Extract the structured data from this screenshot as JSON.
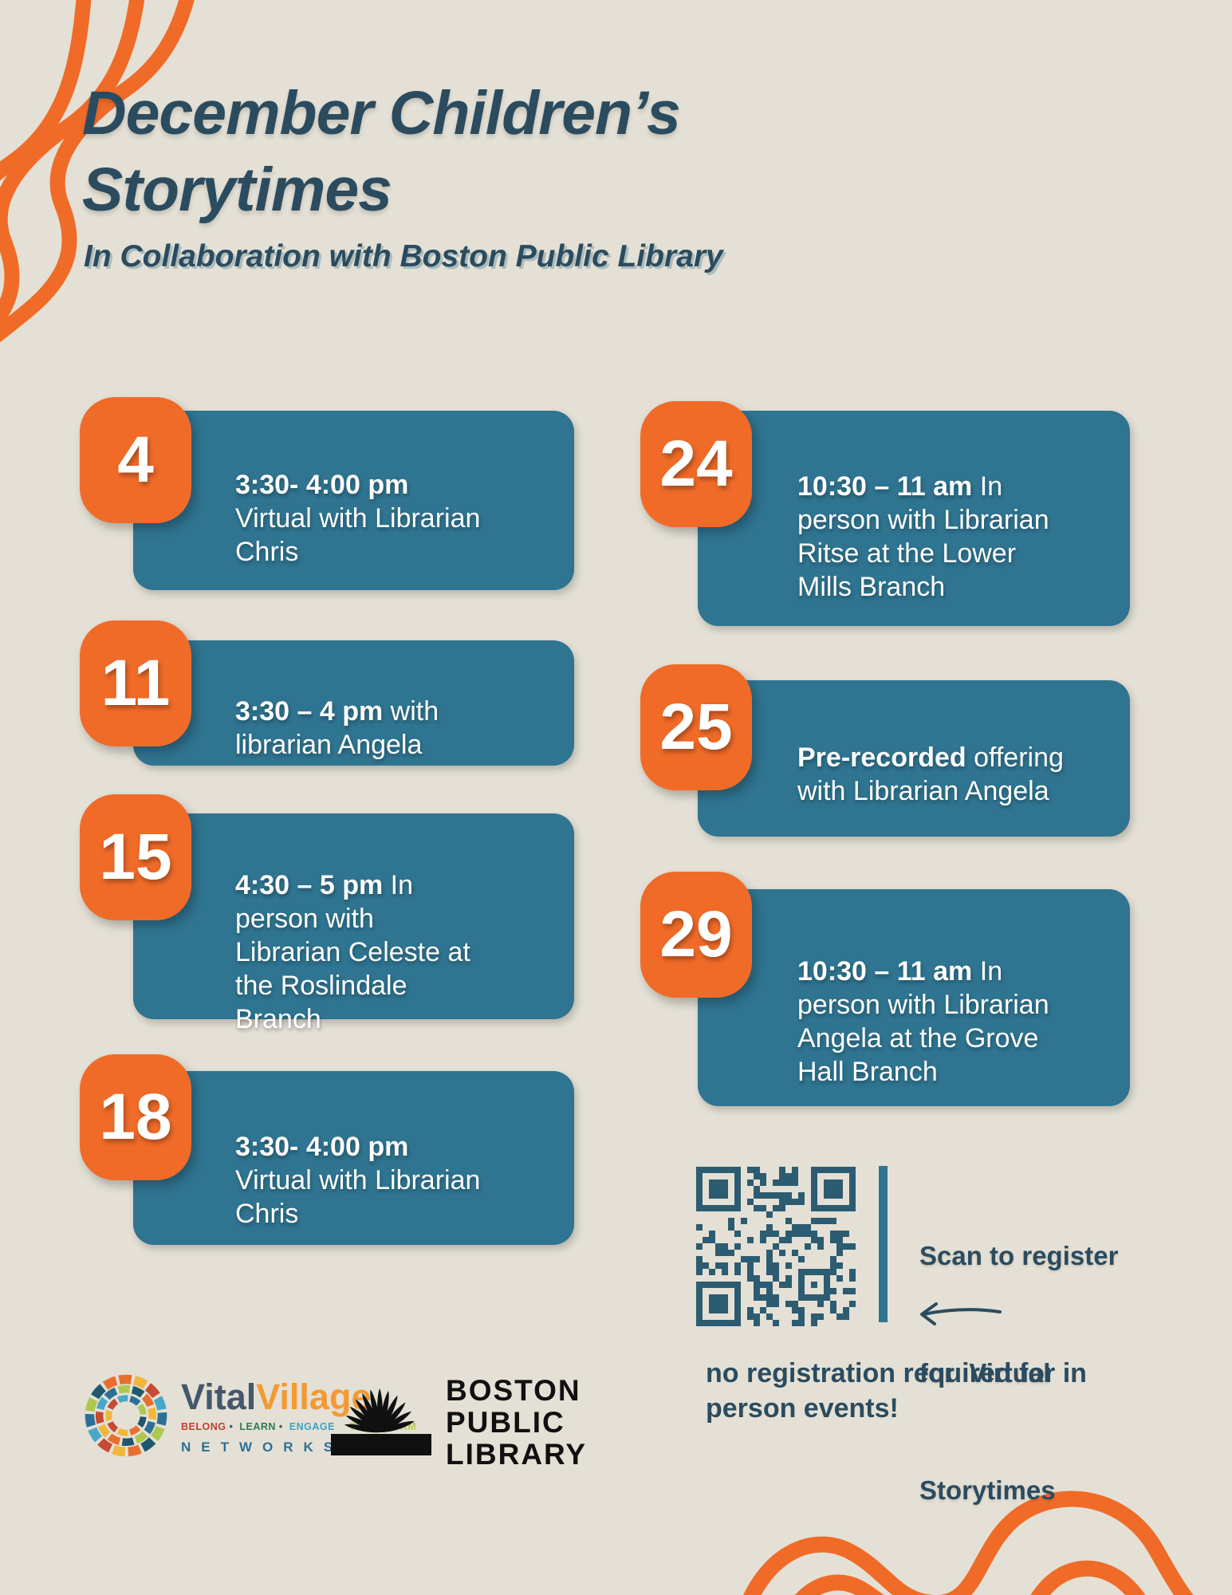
{
  "header": {
    "title_line1": "December Children’s",
    "title_line2": "Storytimes",
    "subtitle": "In Collaboration with Boston Public Library"
  },
  "events": [
    {
      "day": "4",
      "time": "3:30- 4:00 pm",
      "desc": "Virtual with Librarian Chris"
    },
    {
      "day": "11",
      "time": "3:30 – 4 pm",
      "desc": "with librarian Angela"
    },
    {
      "day": "15",
      "time": "4:30 – 5 pm",
      "desc": "In person with Librarian Celeste at the Roslindale Branch"
    },
    {
      "day": "18",
      "time": "3:30- 4:00 pm",
      "desc": "Virtual with Librarian Chris"
    },
    {
      "day": "24",
      "time": "10:30 – 11 am",
      "desc": "In person with Librarian Ritse at the Lower Mills Branch"
    },
    {
      "day": "25",
      "time": "Pre-recorded",
      "desc": "offering with Librarian Angela"
    },
    {
      "day": "29",
      "time": "10:30 – 11 am",
      "desc": "In person with Librarian Angela at the Grove Hall Branch"
    }
  ],
  "register": {
    "scan_lines": [
      "Scan to register",
      "for  Virtual",
      "Storytimes"
    ],
    "note_line1": "no registration required for in",
    "note_line2": "person events!"
  },
  "logos": {
    "vital_village": {
      "word1": "Vital",
      "word2": "Village",
      "tagline_separator": "•",
      "tagline_words": [
        {
          "text": "BELONG",
          "color": "#c2402f"
        },
        {
          "text": "LEARN",
          "color": "#2c7a52"
        },
        {
          "text": "ENGAGE",
          "color": "#3aa3c4"
        },
        {
          "text": "TRANSFORM",
          "color": "#b6ca52"
        }
      ],
      "networks": "NETWORKS"
    },
    "bpl": {
      "line1": "BOSTON",
      "line2": "PUBLIC",
      "line3": "LIBRARY"
    }
  },
  "colors": {
    "background": "#e4e0d5",
    "orange": "#f06b28",
    "panel_teal": "#2f7490",
    "heading_teal": "#2b4b5f",
    "qr_teal": "#2c5c71",
    "vital_blue": "#44576c",
    "vital_orange": "#f49a32",
    "networks_blue": "#2b7094",
    "bpl_black": "#101010"
  }
}
